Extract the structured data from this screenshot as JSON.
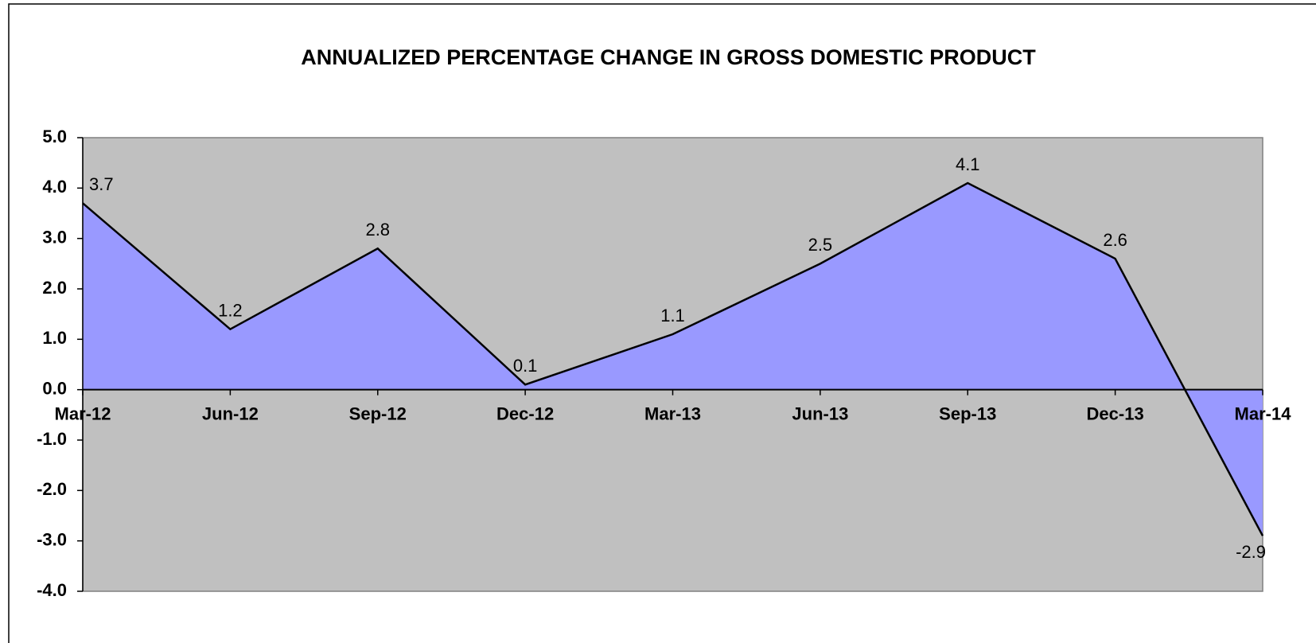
{
  "chart_data": {
    "type": "area",
    "title": "ANNUALIZED  PERCENTAGE CHANGE IN GROSS DOMESTIC PRODUCT",
    "categories": [
      "Mar-12",
      "Jun-12",
      "Sep-12",
      "Dec-12",
      "Mar-13",
      "Jun-13",
      "Sep-13",
      "Dec-13",
      "Mar-14"
    ],
    "values": [
      3.7,
      1.2,
      2.8,
      0.1,
      1.1,
      2.5,
      4.1,
      2.6,
      -2.9
    ],
    "color": "#9999ff",
    "line_color": "#000000",
    "background": "#c0c0c0",
    "ylim": [
      -4,
      5
    ],
    "yticks": [
      {
        "value": -4,
        "label": "-4.0"
      },
      {
        "value": -3,
        "label": "-3.0"
      },
      {
        "value": -2,
        "label": "-2.0"
      },
      {
        "value": -1,
        "label": "-1.0"
      },
      {
        "value": 0,
        "label": "0.0"
      },
      {
        "value": 1,
        "label": "1.0"
      },
      {
        "value": 2,
        "label": "2.0"
      },
      {
        "value": 3,
        "label": "3.0"
      },
      {
        "value": 4,
        "label": "4.0"
      },
      {
        "value": 5,
        "label": "5.0"
      }
    ],
    "grid": false
  }
}
